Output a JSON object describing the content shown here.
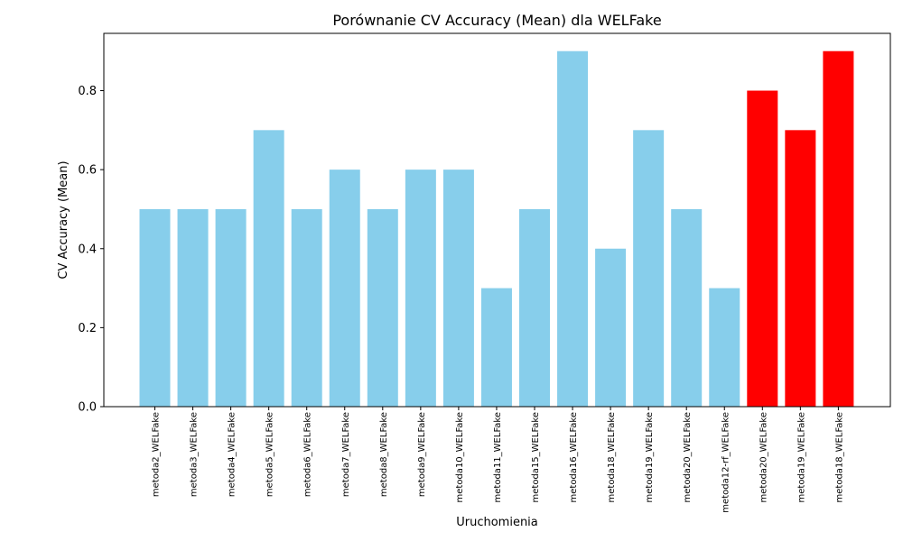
{
  "chart_data": {
    "type": "bar",
    "title": "Porównanie CV Accuracy (Mean) dla WELFake",
    "xlabel": "Uruchomienia",
    "ylabel": "CV Accuracy (Mean)",
    "ylim": [
      0,
      0.945
    ],
    "yticks": [
      0.0,
      0.2,
      0.4,
      0.6,
      0.8
    ],
    "ytick_labels": [
      "0.0",
      "0.2",
      "0.4",
      "0.6",
      "0.8"
    ],
    "grid": false,
    "categories": [
      "metoda2_WELFake",
      "metoda3_WELFake",
      "metoda4_WELFake",
      "metoda5_WELFake",
      "metoda6_WELFake",
      "metoda7_WELFake",
      "metoda8_WELFake",
      "metoda9_WELFake",
      "metoda10_WELFake",
      "metoda11_WELFake",
      "metoda15_WELFake",
      "metoda16_WELFake",
      "metoda18_WELFake",
      "metoda19_WELFake",
      "metoda20_WELFake",
      "metoda12-rf_WELFake",
      "metoda20_WELFake",
      "metoda19_WELFake",
      "metoda18_WELFake"
    ],
    "values": [
      0.5,
      0.5,
      0.5,
      0.7,
      0.5,
      0.6,
      0.5,
      0.6,
      0.6,
      0.3,
      0.5,
      0.9,
      0.4,
      0.7,
      0.5,
      0.3,
      0.8,
      0.7,
      0.9
    ],
    "bar_colors": [
      "#87CEEB",
      "#87CEEB",
      "#87CEEB",
      "#87CEEB",
      "#87CEEB",
      "#87CEEB",
      "#87CEEB",
      "#87CEEB",
      "#87CEEB",
      "#87CEEB",
      "#87CEEB",
      "#87CEEB",
      "#87CEEB",
      "#87CEEB",
      "#87CEEB",
      "#87CEEB",
      "#FF0000",
      "#FF0000",
      "#FF0000"
    ]
  }
}
